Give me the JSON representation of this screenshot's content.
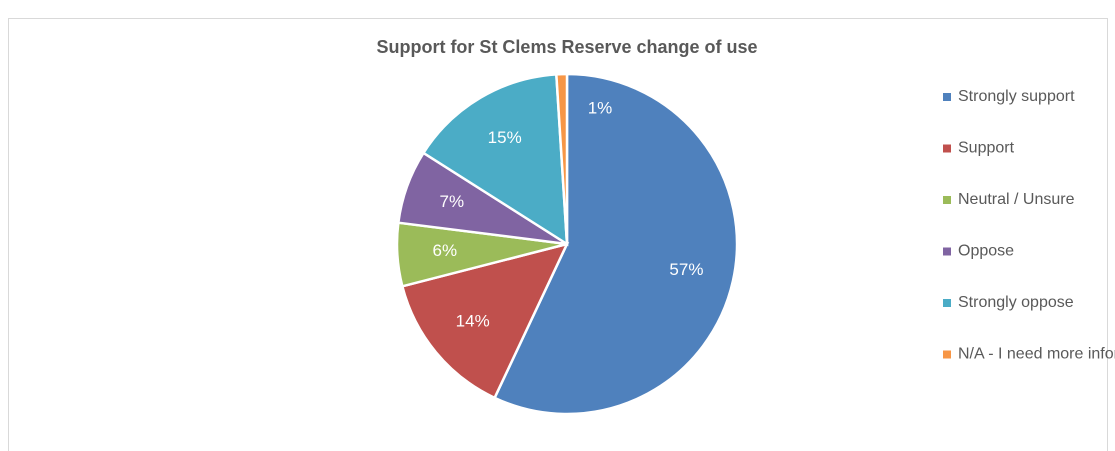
{
  "chart_data": {
    "type": "pie",
    "title": "Support for St Clems Reserve change of use",
    "categories": [
      "Strongly support",
      "Support",
      "Neutral /  Unsure",
      "Oppose",
      "Strongly oppose",
      "N/A - I need more information"
    ],
    "values": [
      57,
      14,
      6,
      7,
      15,
      1
    ],
    "value_labels": [
      "57%",
      "14%",
      "6%",
      "7%",
      "15%",
      "1%"
    ],
    "colors": [
      "#4f81bd",
      "#c0504d",
      "#9bbb59",
      "#8064a2",
      "#4bacc6",
      "#f79646"
    ],
    "legend": "right"
  }
}
